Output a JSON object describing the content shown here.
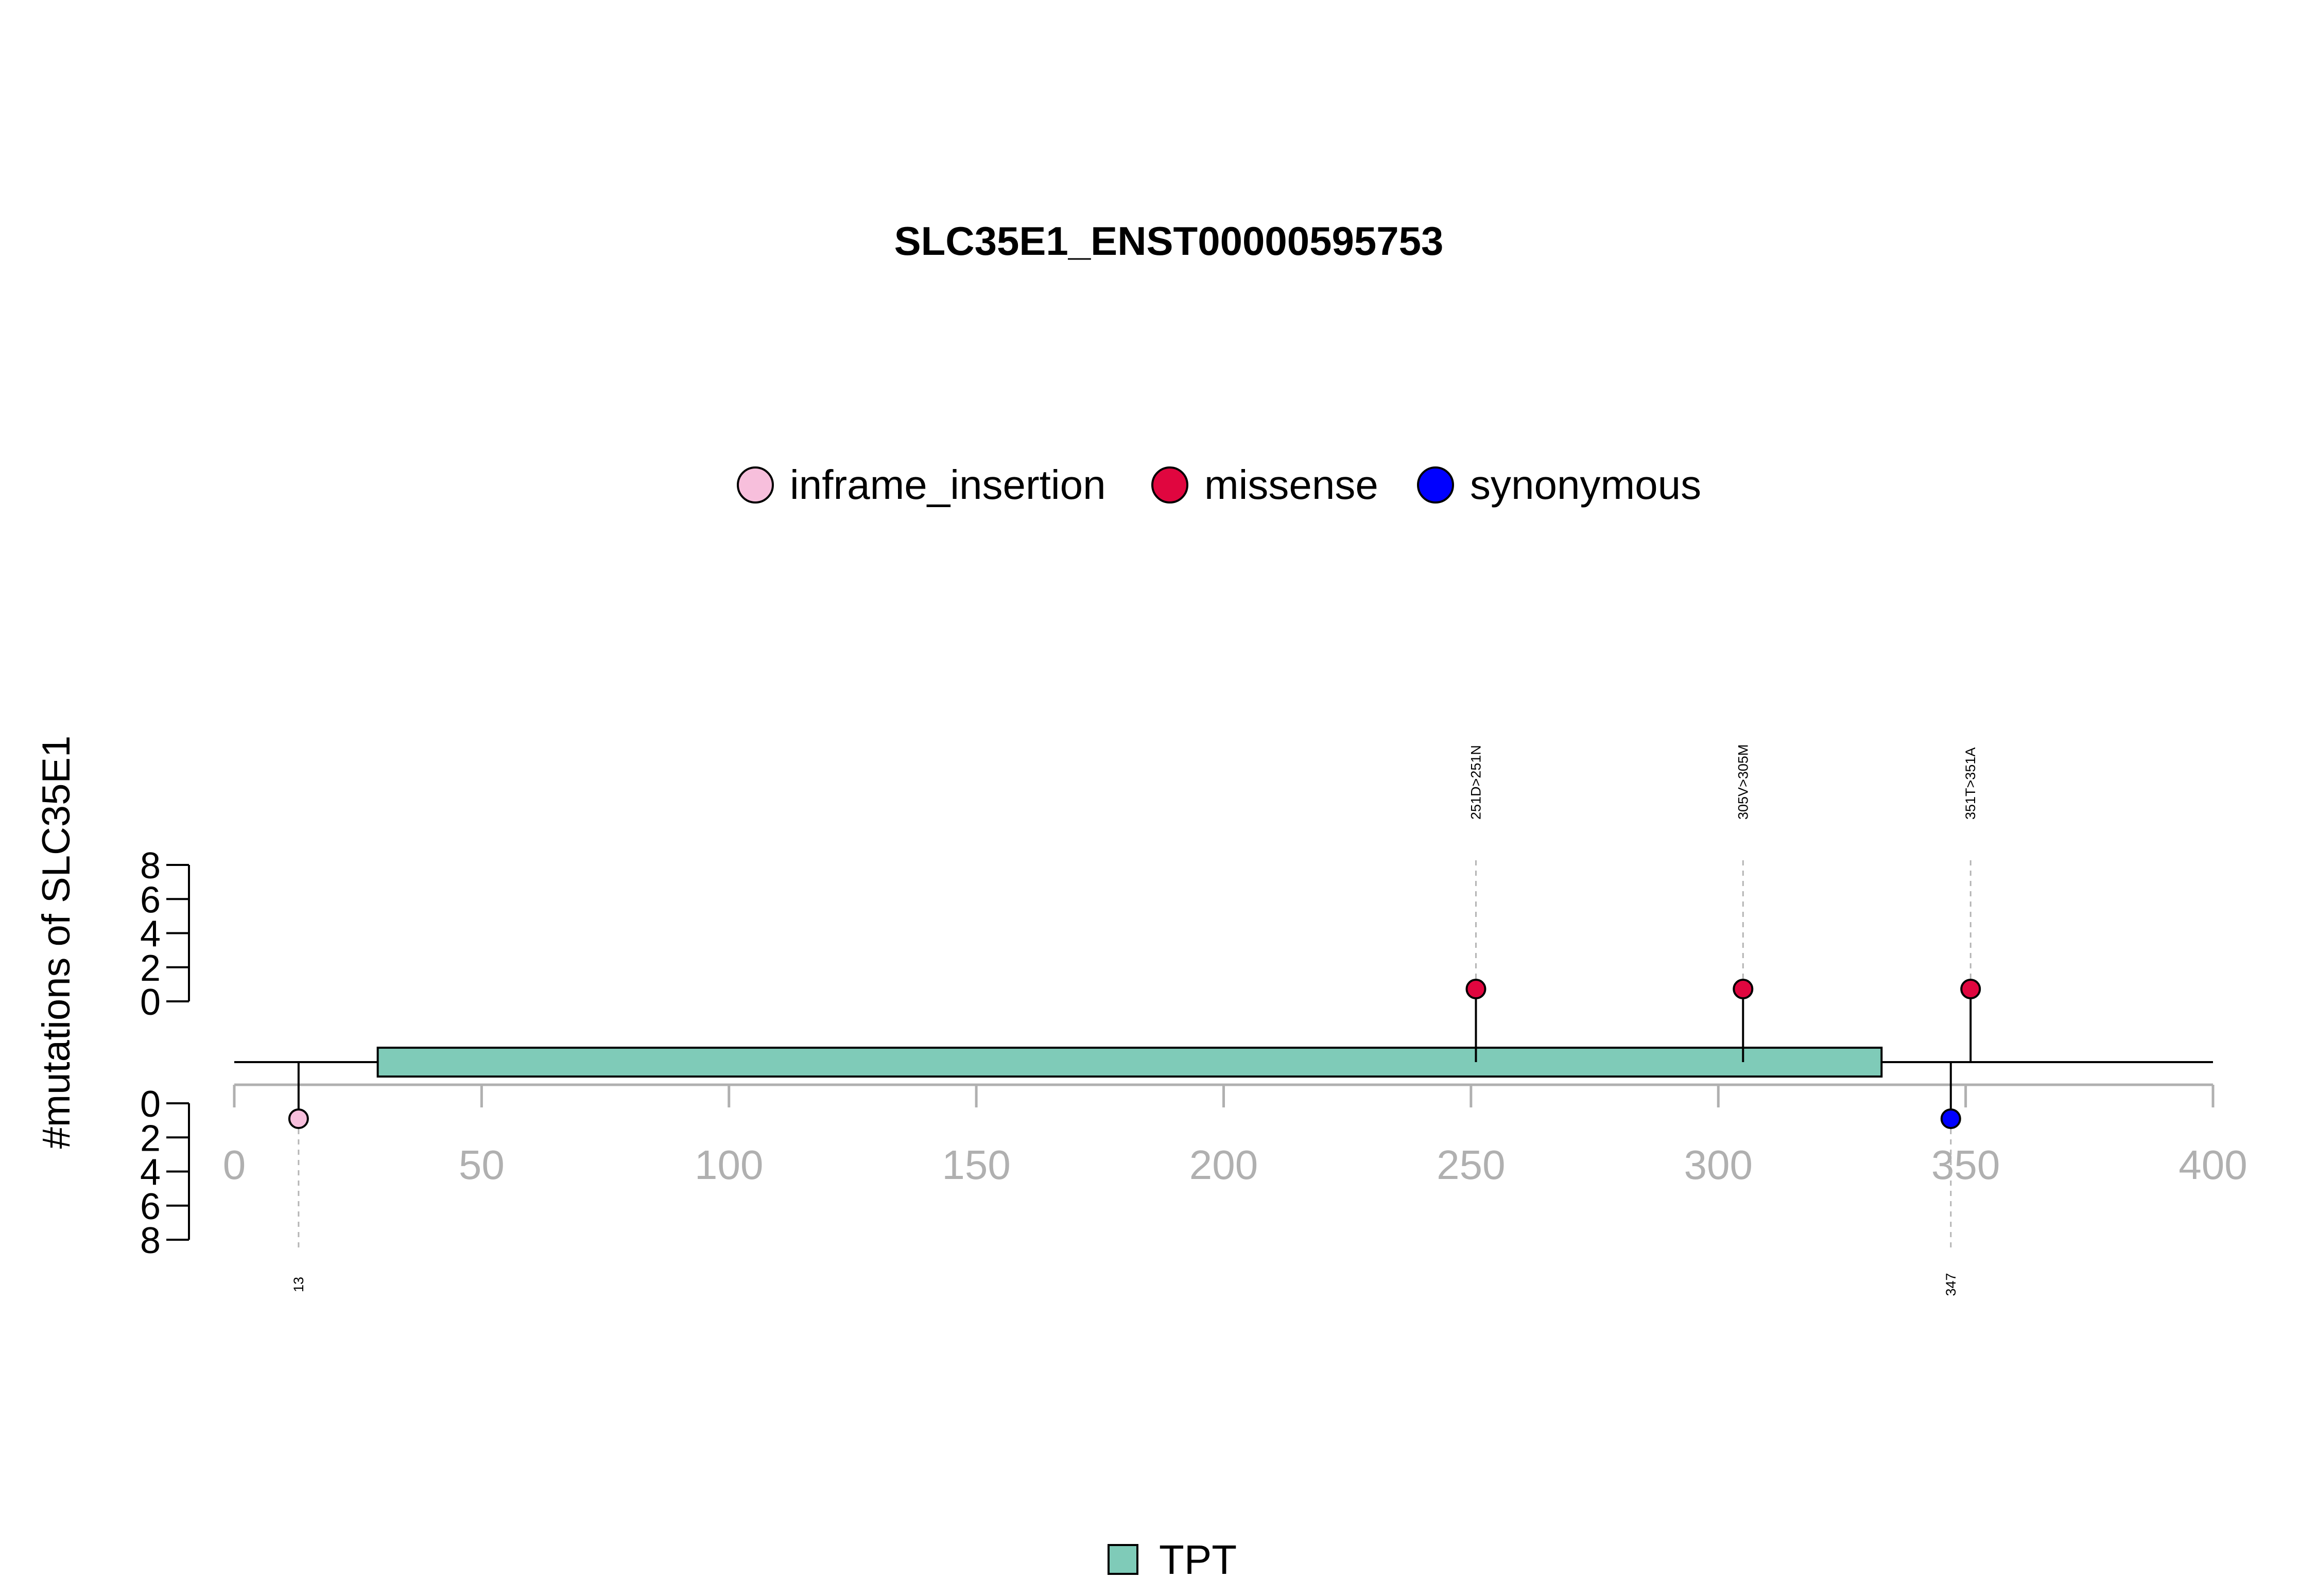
{
  "chart_data": {
    "type": "lollipop",
    "title": "SLC35E1_ENST00000595753",
    "ylabel": "#mutations of SLC35E1",
    "xlim": [
      0,
      400
    ],
    "x_ticks": [
      0,
      50,
      100,
      150,
      200,
      250,
      300,
      350,
      400
    ],
    "y_ticks": [
      0,
      2,
      4,
      6,
      8
    ],
    "ylim": [
      0,
      8
    ],
    "protein_length": 400,
    "domains": [
      {
        "name": "TPT",
        "start": 29,
        "end": 333,
        "color": "#7fcbb8"
      }
    ],
    "legend_categories": [
      {
        "name": "inframe_insertion",
        "color": "#f7bfdc"
      },
      {
        "name": "missense",
        "color": "#e0063f"
      },
      {
        "name": "synonymous",
        "color": "#0000ff"
      }
    ],
    "mutations": [
      {
        "position": 13,
        "count": 1,
        "category": "inframe_insertion",
        "side": "bottom",
        "label": "13",
        "color": "#f7bfdc"
      },
      {
        "position": 251,
        "count": 1,
        "category": "missense",
        "side": "top",
        "label": "251D>251N",
        "color": "#e0063f"
      },
      {
        "position": 305,
        "count": 1,
        "category": "missense",
        "side": "top",
        "label": "305V>305M",
        "color": "#e0063f"
      },
      {
        "position": 347,
        "count": 1,
        "category": "synonymous",
        "side": "bottom",
        "label": "347",
        "color": "#0000ff"
      },
      {
        "position": 351,
        "count": 1,
        "category": "missense",
        "side": "top",
        "label": "351T>351A",
        "color": "#e0063f"
      }
    ],
    "grid": false,
    "legend_position": "top-center"
  }
}
